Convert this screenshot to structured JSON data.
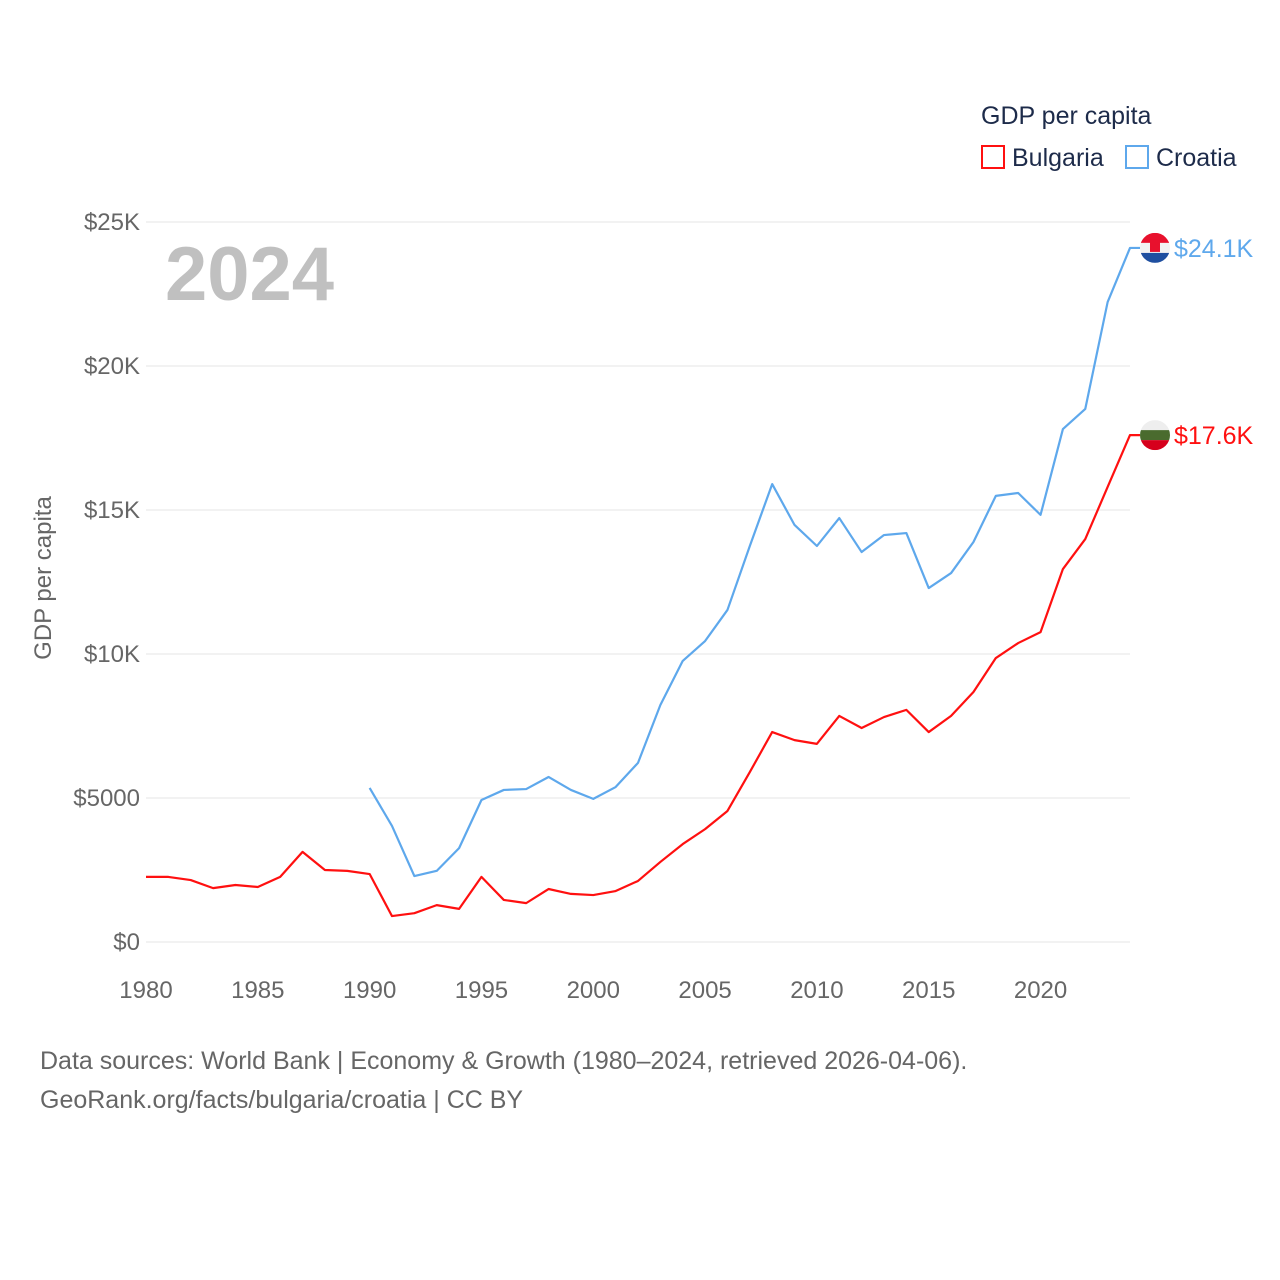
{
  "chart_data": {
    "type": "line",
    "title": "GDP per capita",
    "ylabel": "GDP per capita",
    "xlabel": "",
    "year_label": "2024",
    "xlim": [
      1980,
      2024
    ],
    "ylim": [
      0,
      25000
    ],
    "grid": true,
    "legend_position": "top-right",
    "x_ticks": [
      1980,
      1985,
      1990,
      1995,
      2000,
      2005,
      2010,
      2015,
      2020
    ],
    "y_ticks": [
      0,
      5000,
      10000,
      15000,
      20000,
      25000
    ],
    "y_tick_labels": [
      "$0",
      "$5000",
      "$10K",
      "$15K",
      "$20K",
      "$25K"
    ],
    "series": [
      {
        "name": "Bulgaria",
        "color": "#ff1010",
        "end_label": "$17.6K",
        "flag": "bulgaria-flag",
        "start_year": 1980,
        "values": [
          2260,
          2260,
          2150,
          1870,
          1980,
          1910,
          2260,
          3130,
          2500,
          2470,
          2360,
          900,
          1000,
          1280,
          1150,
          2260,
          1460,
          1350,
          1840,
          1670,
          1630,
          1770,
          2120,
          2780,
          3400,
          3920,
          4550,
          5900,
          7290,
          7010,
          6880,
          7850,
          7430,
          7810,
          8060,
          7290,
          7850,
          8680,
          9860,
          10380,
          10760,
          12950,
          13990,
          15800,
          17600
        ]
      },
      {
        "name": "Croatia",
        "color": "#5ea8ec",
        "end_label": "$24.1K",
        "flag": "croatia-flag",
        "start_year": 1990,
        "values": [
          5350,
          4030,
          2290,
          2470,
          3260,
          4930,
          5280,
          5310,
          5730,
          5280,
          4970,
          5380,
          6220,
          8230,
          9760,
          10450,
          11530,
          13750,
          15900,
          14480,
          13750,
          14720,
          13540,
          14130,
          14200,
          12290,
          12810,
          13890,
          15490,
          15590,
          14830,
          17810,
          18510,
          22220,
          24100
        ]
      }
    ]
  },
  "footer": {
    "line1": "Data sources: World Bank | Economy & Growth (1980–2024, retrieved 2026-04-06).",
    "line2": "GeoRank.org/facts/bulgaria/croatia | CC BY"
  }
}
